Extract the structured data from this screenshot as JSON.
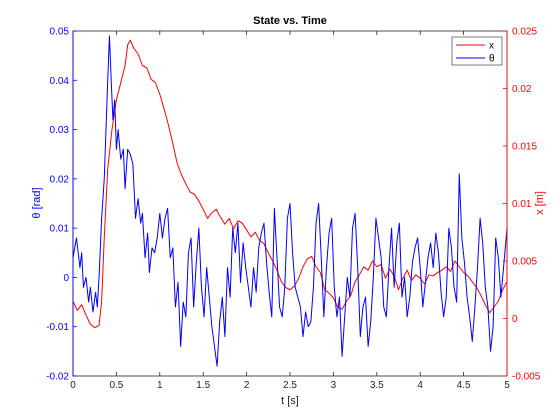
{
  "chart_data": {
    "type": "line",
    "title": "State vs. Time",
    "xlabel": "t [s]",
    "ylabel_left": "θ [rad]",
    "ylabel_right": "x [m]",
    "xlim": [
      0,
      5
    ],
    "ylim_left": [
      -0.02,
      0.05
    ],
    "ylim_right": [
      -0.005,
      0.025
    ],
    "x_ticks": [
      "0",
      "0.5",
      "1",
      "1.5",
      "2",
      "2.5",
      "3",
      "3.5",
      "4",
      "4.5",
      "5"
    ],
    "y_left_ticks": [
      "-0.02",
      "-0.01",
      "0",
      "0.01",
      "0.02",
      "0.03",
      "0.04",
      "0.05"
    ],
    "y_right_ticks": [
      "-0.005",
      "0",
      "0.005",
      "0.01",
      "0.015",
      "0.02",
      "0.025"
    ],
    "grid": false,
    "legend_position": "top-right",
    "colors": {
      "x": "#ff0000",
      "theta": "#0000ff",
      "axis": "#262626"
    },
    "series": [
      {
        "name": "x",
        "axis": "right",
        "x": [
          0,
          0.05,
          0.1,
          0.15,
          0.2,
          0.25,
          0.3,
          0.33,
          0.36,
          0.4,
          0.45,
          0.5,
          0.55,
          0.6,
          0.63,
          0.66,
          0.7,
          0.75,
          0.8,
          0.85,
          0.9,
          0.95,
          1.0,
          1.05,
          1.1,
          1.15,
          1.2,
          1.25,
          1.3,
          1.35,
          1.4,
          1.45,
          1.5,
          1.55,
          1.6,
          1.65,
          1.7,
          1.75,
          1.8,
          1.85,
          1.9,
          1.95,
          2.0,
          2.05,
          2.1,
          2.15,
          2.2,
          2.25,
          2.3,
          2.35,
          2.4,
          2.45,
          2.5,
          2.55,
          2.6,
          2.65,
          2.7,
          2.75,
          2.8,
          2.85,
          2.9,
          2.95,
          3.0,
          3.05,
          3.1,
          3.15,
          3.2,
          3.25,
          3.3,
          3.35,
          3.4,
          3.45,
          3.5,
          3.55,
          3.6,
          3.65,
          3.7,
          3.75,
          3.8,
          3.85,
          3.9,
          3.95,
          4.0,
          4.05,
          4.1,
          4.15,
          4.2,
          4.25,
          4.3,
          4.35,
          4.4,
          4.45,
          4.5,
          4.55,
          4.6,
          4.65,
          4.7,
          4.75,
          4.8,
          4.85,
          4.9,
          4.95,
          5.0
        ],
        "values": [
          0.0015,
          0.0007,
          0.0012,
          0.0003,
          -0.0005,
          -0.0008,
          -0.0006,
          0.0015,
          0.007,
          0.013,
          0.0165,
          0.019,
          0.0205,
          0.022,
          0.0238,
          0.0242,
          0.0235,
          0.023,
          0.022,
          0.0218,
          0.0208,
          0.0205,
          0.0195,
          0.0182,
          0.0168,
          0.0152,
          0.0135,
          0.0125,
          0.0117,
          0.011,
          0.0108,
          0.0102,
          0.0095,
          0.0087,
          0.0092,
          0.0095,
          0.0088,
          0.0082,
          0.0087,
          0.0078,
          0.0085,
          0.0083,
          0.0077,
          0.0071,
          0.0075,
          0.0068,
          0.0065,
          0.0057,
          0.005,
          0.0042,
          0.0032,
          0.0027,
          0.0025,
          0.0028,
          0.0035,
          0.0045,
          0.0052,
          0.0054,
          0.0045,
          0.004,
          0.0025,
          0.0022,
          0.0018,
          0.001,
          0.0008,
          0.0015,
          0.002,
          0.0032,
          0.0038,
          0.0045,
          0.0042,
          0.005,
          0.0045,
          0.0047,
          0.0035,
          0.0043,
          0.0037,
          0.0025,
          0.0035,
          0.0042,
          0.0033,
          0.0038,
          0.0035,
          0.003,
          0.0038,
          0.0037,
          0.004,
          0.0042,
          0.0045,
          0.0041,
          0.005,
          0.0045,
          0.004,
          0.0037,
          0.0032,
          0.0027,
          0.002,
          0.0012,
          0.0005,
          0.001,
          0.0015,
          0.0025,
          0.0032
        ]
      },
      {
        "name": "θ",
        "axis": "left",
        "x": [
          0,
          0.04,
          0.08,
          0.1,
          0.12,
          0.15,
          0.18,
          0.2,
          0.23,
          0.26,
          0.28,
          0.3,
          0.33,
          0.36,
          0.38,
          0.4,
          0.42,
          0.44,
          0.46,
          0.48,
          0.5,
          0.52,
          0.55,
          0.58,
          0.6,
          0.63,
          0.66,
          0.69,
          0.72,
          0.75,
          0.78,
          0.8,
          0.83,
          0.86,
          0.88,
          0.91,
          0.94,
          0.97,
          1.0,
          1.03,
          1.06,
          1.09,
          1.12,
          1.15,
          1.18,
          1.21,
          1.24,
          1.27,
          1.3,
          1.33,
          1.36,
          1.39,
          1.42,
          1.45,
          1.48,
          1.51,
          1.54,
          1.57,
          1.6,
          1.63,
          1.66,
          1.69,
          1.72,
          1.75,
          1.78,
          1.81,
          1.84,
          1.87,
          1.9,
          1.93,
          1.96,
          1.99,
          2.02,
          2.05,
          2.08,
          2.11,
          2.14,
          2.17,
          2.2,
          2.23,
          2.26,
          2.29,
          2.32,
          2.35,
          2.38,
          2.41,
          2.44,
          2.47,
          2.5,
          2.53,
          2.56,
          2.59,
          2.62,
          2.65,
          2.68,
          2.71,
          2.74,
          2.77,
          2.8,
          2.83,
          2.86,
          2.89,
          2.92,
          2.95,
          2.98,
          3.01,
          3.04,
          3.07,
          3.1,
          3.13,
          3.16,
          3.19,
          3.22,
          3.25,
          3.28,
          3.31,
          3.34,
          3.37,
          3.4,
          3.43,
          3.46,
          3.49,
          3.52,
          3.55,
          3.58,
          3.61,
          3.64,
          3.67,
          3.7,
          3.73,
          3.76,
          3.79,
          3.82,
          3.85,
          3.88,
          3.91,
          3.94,
          3.97,
          4.0,
          4.03,
          4.06,
          4.09,
          4.12,
          4.15,
          4.18,
          4.21,
          4.24,
          4.27,
          4.3,
          4.33,
          4.36,
          4.39,
          4.42,
          4.45,
          4.48,
          4.51,
          4.54,
          4.57,
          4.6,
          4.63,
          4.66,
          4.69,
          4.72,
          4.75,
          4.78,
          4.81,
          4.84,
          4.87,
          4.9,
          4.93,
          4.96,
          5.0
        ],
        "values": [
          0.004,
          0.008,
          0.002,
          0.005,
          -0.002,
          0.0,
          -0.005,
          -0.002,
          -0.007,
          -0.003,
          -0.006,
          0.0,
          0.012,
          0.02,
          0.03,
          0.04,
          0.049,
          0.04,
          0.032,
          0.036,
          0.026,
          0.03,
          0.024,
          0.026,
          0.018,
          0.026,
          0.025,
          0.023,
          0.012,
          0.016,
          0.011,
          0.013,
          0.004,
          0.009,
          0.001,
          0.006,
          0.005,
          0.008,
          0.013,
          0.008,
          0.012,
          0.014,
          0.004,
          0.006,
          -0.006,
          -0.001,
          -0.014,
          -0.005,
          -0.008,
          0.005,
          0.008,
          -0.006,
          0.003,
          0.01,
          -0.002,
          -0.008,
          0.002,
          -0.004,
          -0.01,
          -0.014,
          -0.018,
          -0.009,
          -0.004,
          -0.012,
          0.002,
          -0.004,
          0.01,
          0.005,
          0.011,
          -0.001,
          0.007,
          0.002,
          -0.002,
          -0.006,
          0.002,
          -0.003,
          0.006,
          0.009,
          0.011,
          0.003,
          -0.003,
          -0.008,
          0.014,
          0.004,
          -0.006,
          -0.008,
          -0.002,
          0.012,
          0.015,
          0.005,
          -0.002,
          -0.004,
          -0.006,
          -0.012,
          -0.007,
          -0.01,
          -0.009,
          -0.002,
          0.011,
          0.015,
          0.004,
          -0.008,
          0.002,
          0.009,
          0.012,
          -0.002,
          -0.008,
          -0.004,
          -0.016,
          -0.008,
          0.0,
          -0.004,
          0.01,
          0.013,
          0.002,
          -0.012,
          -0.006,
          -0.004,
          -0.014,
          -0.009,
          0.0,
          0.012,
          0.008,
          0.004,
          -0.006,
          -0.008,
          0.002,
          0.01,
          -0.002,
          0.007,
          0.011,
          -0.004,
          0.0,
          -0.008,
          -0.004,
          0.003,
          0.006,
          0.008,
          0.002,
          -0.006,
          -0.001,
          0.004,
          0.007,
          0.002,
          0.009,
          0.005,
          -0.003,
          -0.008,
          -0.004,
          0.01,
          0.006,
          -0.002,
          -0.005,
          0.021,
          0.008,
          0.003,
          -0.004,
          -0.008,
          -0.013,
          -0.006,
          0.002,
          0.012,
          0.007,
          -0.002,
          -0.006,
          -0.015,
          -0.01,
          0.008,
          0.004,
          -0.004,
          0.002,
          0.01
        ]
      }
    ]
  }
}
